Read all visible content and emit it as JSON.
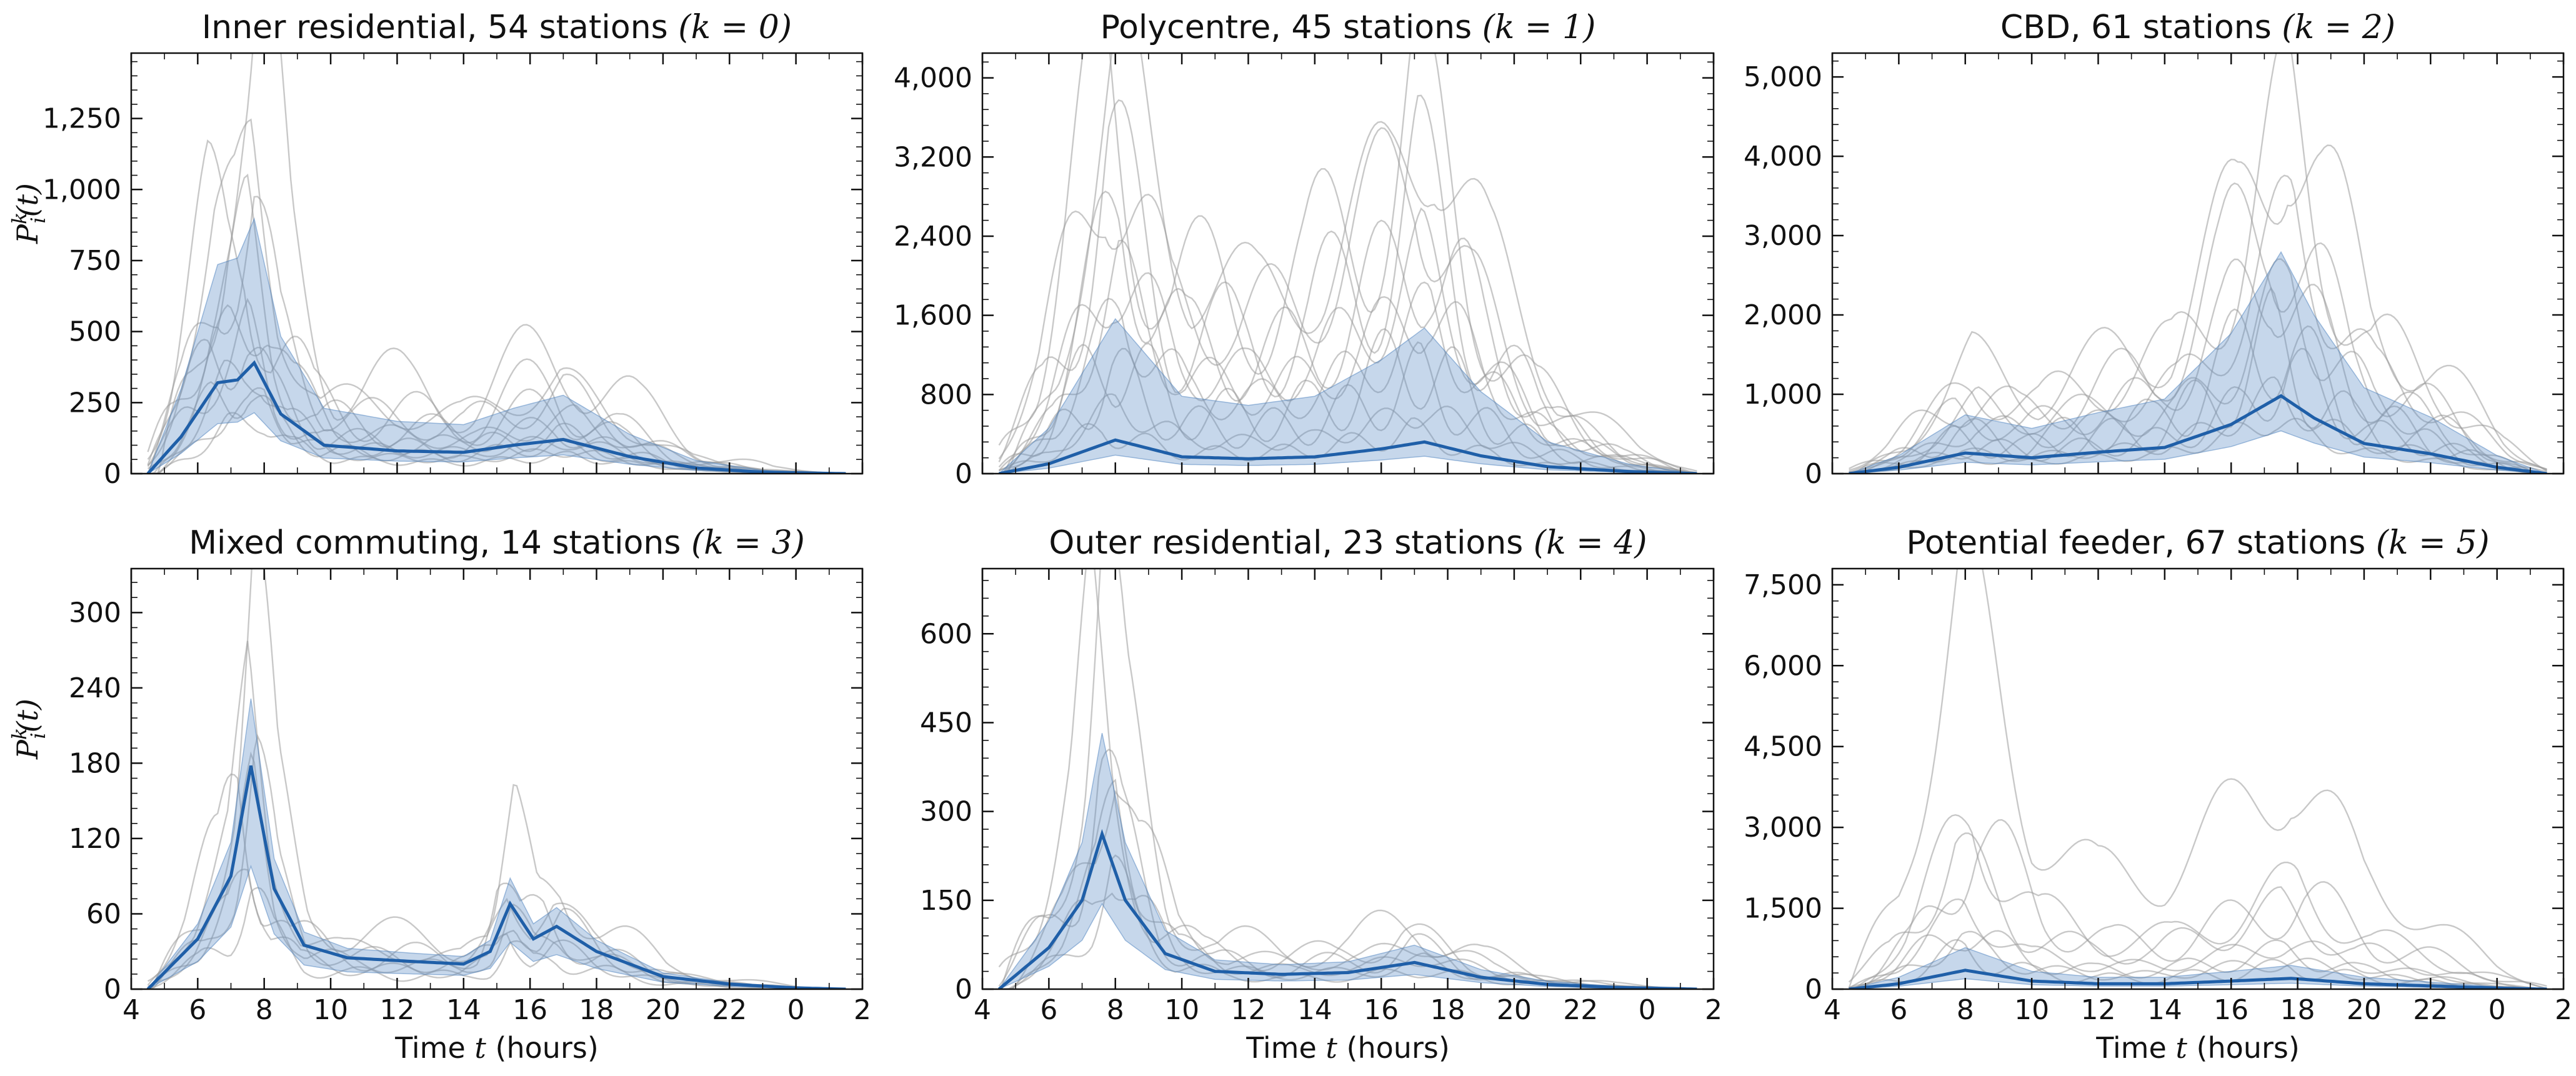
{
  "figure": {
    "x_axis_label_prefix": "Time ",
    "x_axis_label_var": "t",
    "x_axis_label_suffix": " (hours)",
    "y_axis_label": "P_i^k(t)",
    "x_tick_labels": [
      "4",
      "6",
      "8",
      "10",
      "12",
      "14",
      "16",
      "18",
      "20",
      "22",
      "0",
      "2"
    ]
  },
  "chart_data": [
    {
      "type": "line",
      "title": "Inner residential, 54 stations",
      "title_k": "(k = 0)",
      "xlabel": "",
      "ylabel": "P_i^k(t)",
      "xlim": [
        4,
        26
      ],
      "ylim": [
        0,
        1480
      ],
      "y_ticks": [
        0,
        250,
        500,
        750,
        1000,
        1250
      ],
      "y_tick_labels": [
        "0",
        "250",
        "500",
        "750",
        "1,000",
        "1,250"
      ],
      "mean_peaks": [
        [
          4.5,
          0
        ],
        [
          5.5,
          130
        ],
        [
          6.6,
          320
        ],
        [
          7.2,
          330
        ],
        [
          7.7,
          390
        ],
        [
          8.5,
          210
        ],
        [
          9.8,
          100
        ],
        [
          12,
          80
        ],
        [
          14,
          75
        ],
        [
          15.5,
          100
        ],
        [
          17,
          120
        ],
        [
          19,
          60
        ],
        [
          21,
          20
        ],
        [
          23,
          5
        ],
        [
          25.5,
          0
        ]
      ],
      "band_scale": 2.3,
      "station_peaks": [
        1400,
        1050,
        980,
        900,
        760,
        620,
        520,
        450,
        380,
        320,
        260,
        200
      ]
    },
    {
      "type": "line",
      "title": "Polycentre, 45 stations",
      "title_k": "(k = 1)",
      "xlabel": "",
      "ylabel": "",
      "xlim": [
        4,
        26
      ],
      "ylim": [
        0,
        4250
      ],
      "y_ticks": [
        0,
        800,
        1600,
        2400,
        3200,
        4000
      ],
      "y_tick_labels": [
        "0",
        "800",
        "1,600",
        "2,400",
        "3,200",
        "4,000"
      ],
      "mean_peaks": [
        [
          4.5,
          0
        ],
        [
          6,
          100
        ],
        [
          8,
          340
        ],
        [
          10,
          170
        ],
        [
          12,
          150
        ],
        [
          14,
          170
        ],
        [
          16,
          250
        ],
        [
          17.3,
          320
        ],
        [
          19,
          180
        ],
        [
          21,
          70
        ],
        [
          23.5,
          20
        ],
        [
          25.5,
          0
        ]
      ],
      "band_scale": 4.6,
      "station_peaks": [
        4050,
        3850,
        3450,
        2950,
        2600,
        2200,
        1900,
        1650,
        1300,
        1000,
        700,
        450
      ]
    },
    {
      "type": "line",
      "title": "CBD, 61 stations",
      "title_k": "(k = 2)",
      "xlabel": "",
      "ylabel": "",
      "xlim": [
        4,
        26
      ],
      "ylim": [
        0,
        5300
      ],
      "y_ticks": [
        0,
        1000,
        2000,
        3000,
        4000,
        5000
      ],
      "y_tick_labels": [
        "0",
        "1,000",
        "2,000",
        "3,000",
        "4,000",
        "5,000"
      ],
      "mean_peaks": [
        [
          4.5,
          0
        ],
        [
          6,
          80
        ],
        [
          8,
          260
        ],
        [
          10,
          200
        ],
        [
          12,
          270
        ],
        [
          14,
          330
        ],
        [
          16,
          620
        ],
        [
          17.5,
          980
        ],
        [
          18.5,
          700
        ],
        [
          20,
          380
        ],
        [
          22,
          250
        ],
        [
          24,
          80
        ],
        [
          25.5,
          0
        ]
      ],
      "band_scale": 2.85,
      "station_peaks": [
        5050,
        4300,
        3700,
        3200,
        2800,
        2300,
        1900,
        1600,
        1300,
        1000,
        700
      ]
    },
    {
      "type": "line",
      "title": "Mixed commuting, 14 stations",
      "title_k": "(k = 3)",
      "xlabel": "Time t (hours)",
      "ylabel": "P_i^k(t)",
      "xlim": [
        4,
        26
      ],
      "ylim": [
        0,
        335
      ],
      "y_ticks": [
        0,
        60,
        120,
        180,
        240,
        300
      ],
      "y_tick_labels": [
        "0",
        "60",
        "120",
        "180",
        "240",
        "300"
      ],
      "mean_peaks": [
        [
          4.5,
          0
        ],
        [
          6,
          40
        ],
        [
          7,
          90
        ],
        [
          7.6,
          178
        ],
        [
          8.3,
          80
        ],
        [
          9.2,
          35
        ],
        [
          10.5,
          25
        ],
        [
          12.5,
          22
        ],
        [
          14,
          20
        ],
        [
          14.8,
          30
        ],
        [
          15.4,
          68
        ],
        [
          16.1,
          40
        ],
        [
          16.8,
          50
        ],
        [
          18,
          30
        ],
        [
          20,
          10
        ],
        [
          22,
          4
        ],
        [
          24,
          1
        ],
        [
          25.5,
          0
        ]
      ],
      "band_scale": 1.3,
      "station_peaks": [
        318,
        230,
        210,
        180,
        150,
        120,
        90
      ]
    },
    {
      "type": "line",
      "title": "Outer residential, 23 stations",
      "title_k": "(k = 4)",
      "xlabel": "Time t (hours)",
      "ylabel": "",
      "xlim": [
        4,
        26
      ],
      "ylim": [
        0,
        710
      ],
      "y_ticks": [
        0,
        150,
        300,
        450,
        600
      ],
      "y_tick_labels": [
        "0",
        "150",
        "300",
        "450",
        "600"
      ],
      "mean_peaks": [
        [
          4.5,
          0
        ],
        [
          6,
          70
        ],
        [
          7,
          150
        ],
        [
          7.6,
          262
        ],
        [
          8.3,
          150
        ],
        [
          9.5,
          60
        ],
        [
          11,
          30
        ],
        [
          13,
          25
        ],
        [
          15,
          28
        ],
        [
          17,
          45
        ],
        [
          19,
          20
        ],
        [
          21,
          8
        ],
        [
          23,
          3
        ],
        [
          25.5,
          0
        ]
      ],
      "band_scale": 1.65,
      "station_peaks": [
        690,
        550,
        470,
        400,
        330,
        260,
        190
      ]
    },
    {
      "type": "line",
      "title": "Potential feeder, 67 stations",
      "title_k": "(k = 5)",
      "xlabel": "Time t (hours)",
      "ylabel": "",
      "xlim": [
        4,
        26
      ],
      "ylim": [
        0,
        7800
      ],
      "y_ticks": [
        0,
        1500,
        3000,
        4500,
        6000,
        7500
      ],
      "y_tick_labels": [
        "0",
        "1,500",
        "3,000",
        "4,500",
        "6,000",
        "7,500"
      ],
      "mean_peaks": [
        [
          4.5,
          0
        ],
        [
          6,
          100
        ],
        [
          8,
          350
        ],
        [
          10,
          150
        ],
        [
          12,
          100
        ],
        [
          14,
          100
        ],
        [
          16,
          150
        ],
        [
          17.8,
          200
        ],
        [
          20,
          100
        ],
        [
          22,
          60
        ],
        [
          24,
          20
        ],
        [
          25.5,
          0
        ]
      ],
      "band_scale": 2.2,
      "station_peaks": [
        7350,
        3250,
        3000,
        2500,
        1500,
        1200,
        900,
        700
      ]
    }
  ]
}
